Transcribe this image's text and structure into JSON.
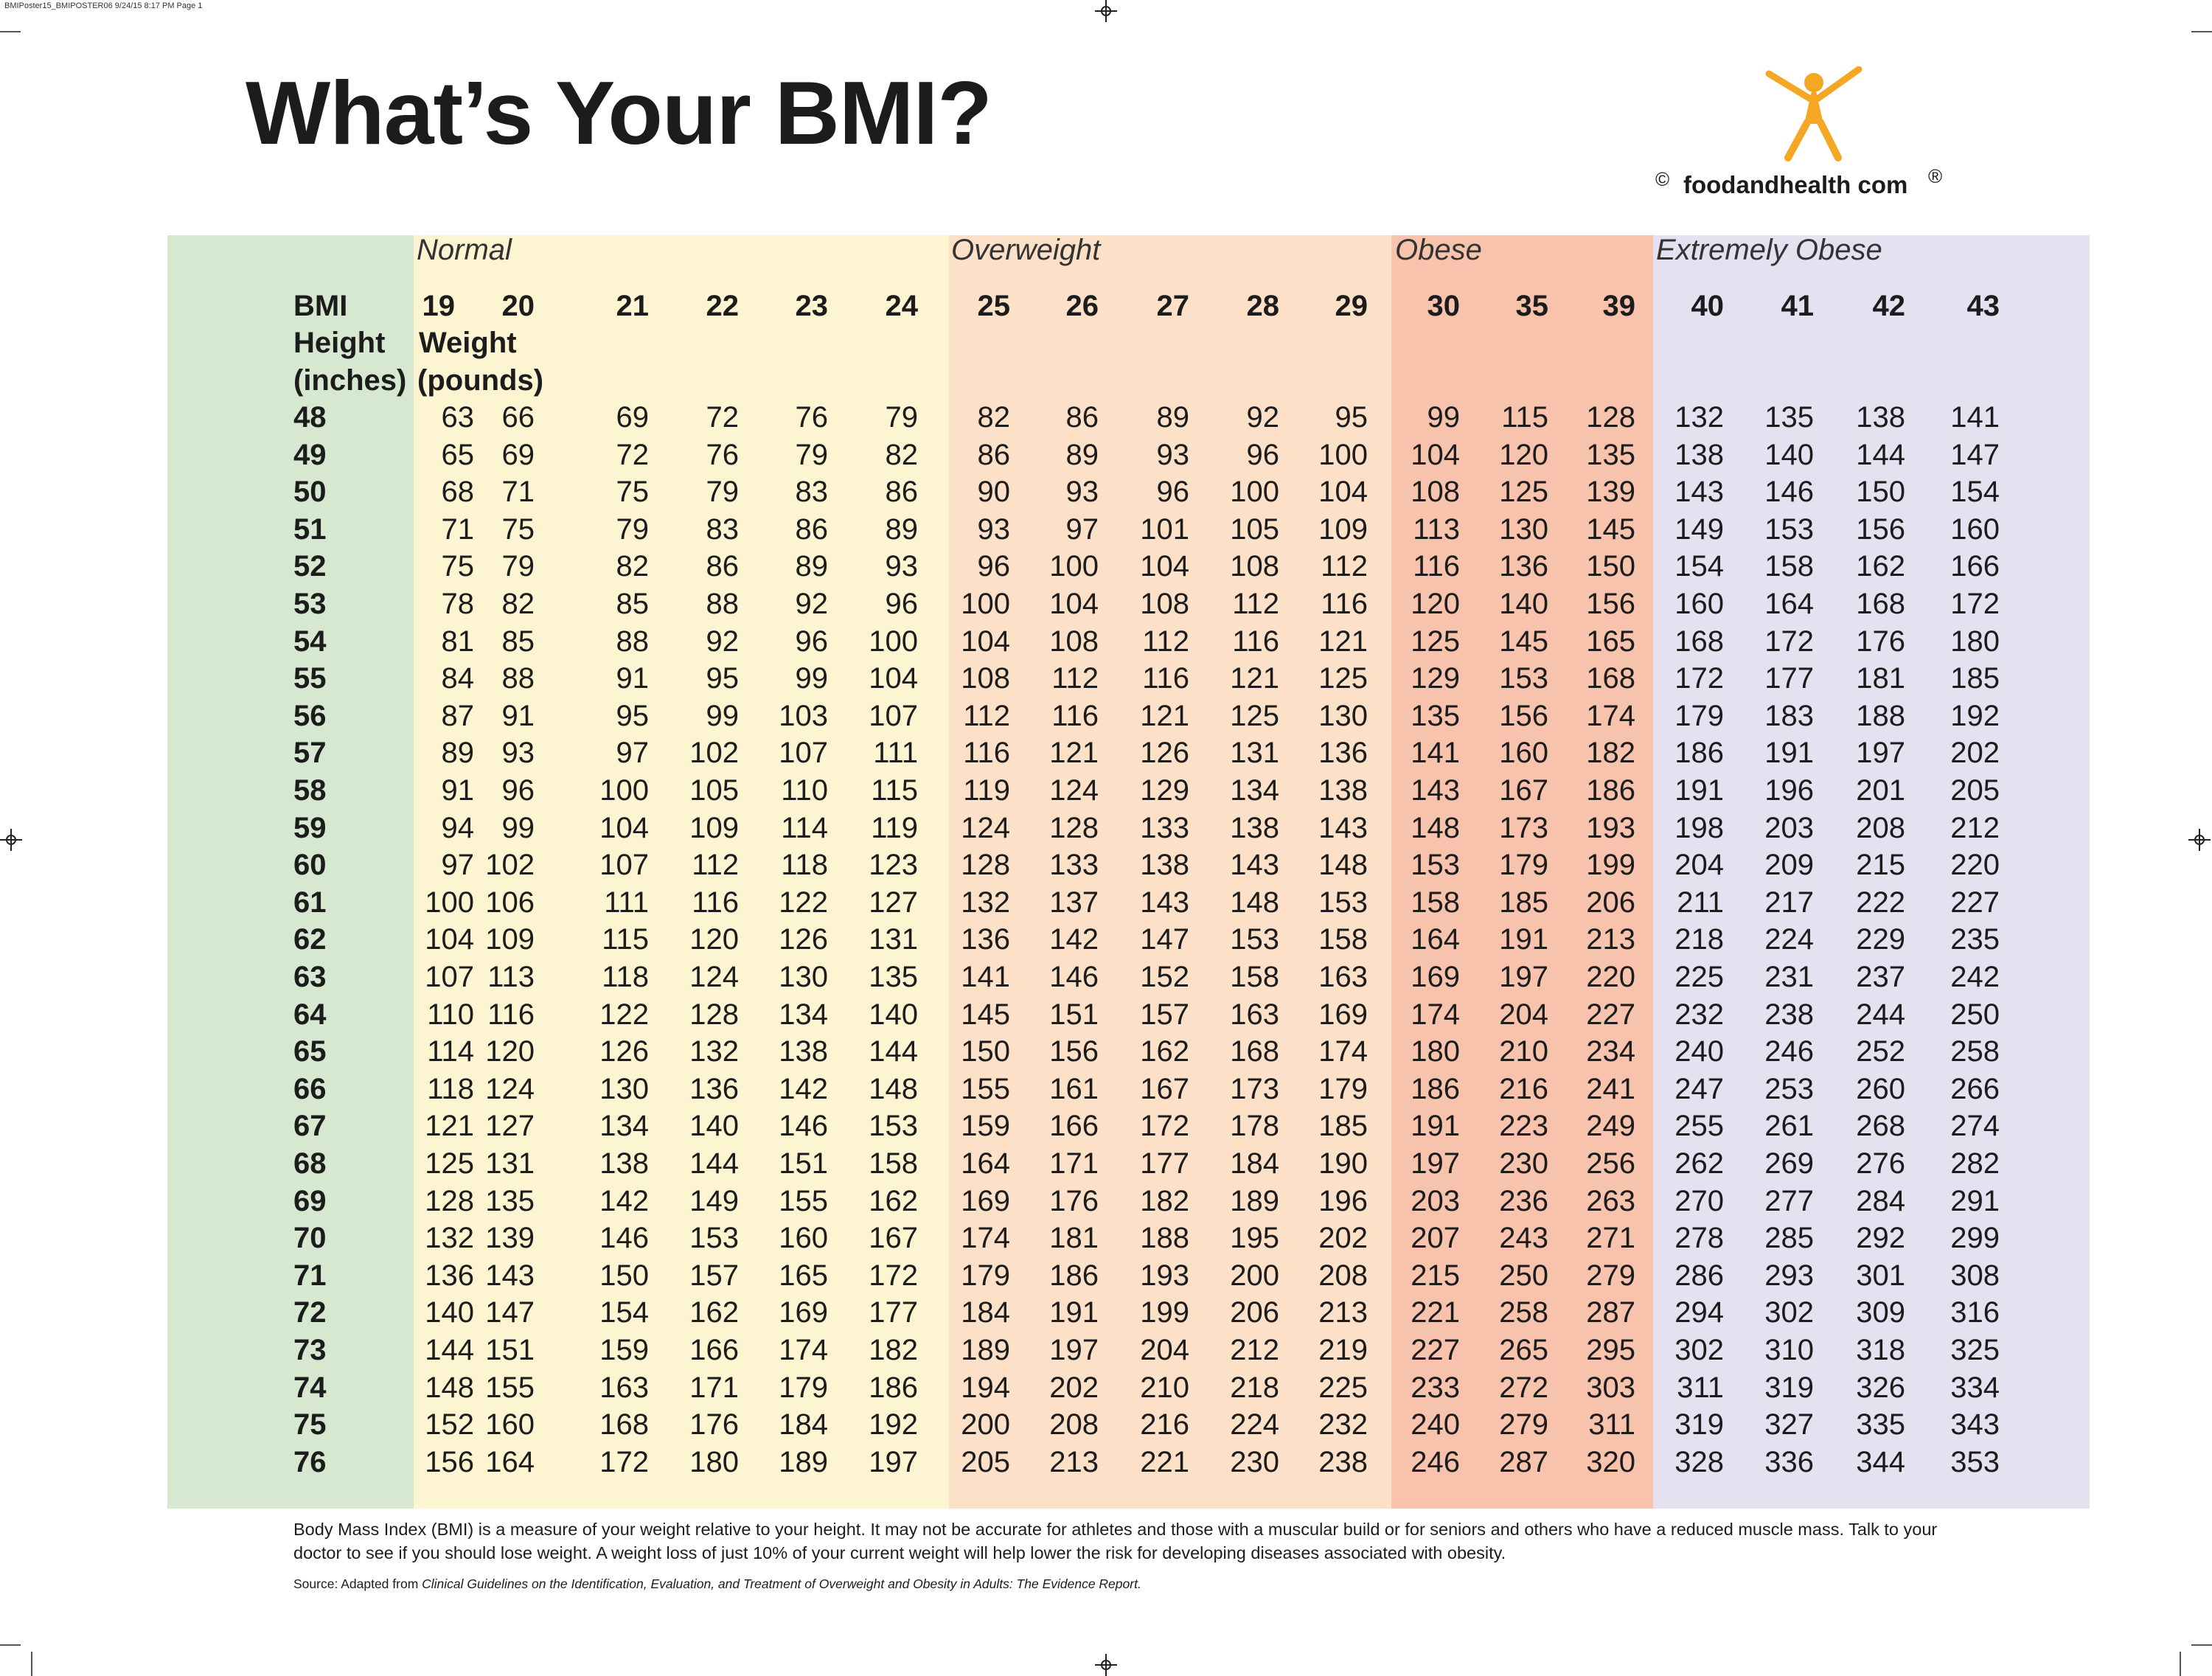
{
  "print_slug": "BMIPoster15_BMIPOSTER06  9/24/15  8:17 PM  Page 1",
  "title": "What’s Your BMI?",
  "logo": {
    "icon": "stick-figure-icon",
    "copyright": "©",
    "text": "foodandhealth com",
    "registered": "®"
  },
  "colors": {
    "normal_band": "#fdf4d1",
    "overweight_band": "#fde0c8",
    "obese_band": "#f7c3ad",
    "extremely_obese_band": "#e4e1f0",
    "height_band": "#d6e8cf",
    "logo": "#f5a623"
  },
  "categories": {
    "normal": "Normal",
    "overweight": "Overweight",
    "obese": "Obese",
    "extremely_obese": "Extremely Obese"
  },
  "table_labels": {
    "bmi": "BMI",
    "height": "Height",
    "height_unit": "(inches)",
    "weight": "Weight",
    "weight_unit": "(pounds)"
  },
  "bmi_values": [
    "19",
    "20",
    "21",
    "22",
    "23",
    "24",
    "25",
    "26",
    "27",
    "28",
    "29",
    "30",
    "35",
    "39",
    "40",
    "41",
    "42",
    "43"
  ],
  "rows": [
    {
      "height": "48",
      "weights": [
        "63",
        "66",
        "69",
        "72",
        "76",
        "79",
        "82",
        "86",
        "89",
        "92",
        "95",
        "99",
        "115",
        "128",
        "132",
        "135",
        "138",
        "141"
      ]
    },
    {
      "height": "49",
      "weights": [
        "65",
        "69",
        "72",
        "76",
        "79",
        "82",
        "86",
        "89",
        "93",
        "96",
        "100",
        "104",
        "120",
        "135",
        "138",
        "140",
        "144",
        "147"
      ]
    },
    {
      "height": "50",
      "weights": [
        "68",
        "71",
        "75",
        "79",
        "83",
        "86",
        "90",
        "93",
        "96",
        "100",
        "104",
        "108",
        "125",
        "139",
        "143",
        "146",
        "150",
        "154"
      ]
    },
    {
      "height": "51",
      "weights": [
        "71",
        "75",
        "79",
        "83",
        "86",
        "89",
        "93",
        "97",
        "101",
        "105",
        "109",
        "113",
        "130",
        "145",
        "149",
        "153",
        "156",
        "160"
      ]
    },
    {
      "height": "52",
      "weights": [
        "75",
        "79",
        "82",
        "86",
        "89",
        "93",
        "96",
        "100",
        "104",
        "108",
        "112",
        "116",
        "136",
        "150",
        "154",
        "158",
        "162",
        "166"
      ]
    },
    {
      "height": "53",
      "weights": [
        "78",
        "82",
        "85",
        "88",
        "92",
        "96",
        "100",
        "104",
        "108",
        "112",
        "116",
        "120",
        "140",
        "156",
        "160",
        "164",
        "168",
        "172"
      ]
    },
    {
      "height": "54",
      "weights": [
        "81",
        "85",
        "88",
        "92",
        "96",
        "100",
        "104",
        "108",
        "112",
        "116",
        "121",
        "125",
        "145",
        "165",
        "168",
        "172",
        "176",
        "180"
      ]
    },
    {
      "height": "55",
      "weights": [
        "84",
        "88",
        "91",
        "95",
        "99",
        "104",
        "108",
        "112",
        "116",
        "121",
        "125",
        "129",
        "153",
        "168",
        "172",
        "177",
        "181",
        "185"
      ]
    },
    {
      "height": "56",
      "weights": [
        "87",
        "91",
        "95",
        "99",
        "103",
        "107",
        "112",
        "116",
        "121",
        "125",
        "130",
        "135",
        "156",
        "174",
        "179",
        "183",
        "188",
        "192"
      ]
    },
    {
      "height": "57",
      "weights": [
        "89",
        "93",
        "97",
        "102",
        "107",
        "111",
        "116",
        "121",
        "126",
        "131",
        "136",
        "141",
        "160",
        "182",
        "186",
        "191",
        "197",
        "202"
      ]
    },
    {
      "height": "58",
      "weights": [
        "91",
        "96",
        "100",
        "105",
        "110",
        "115",
        "119",
        "124",
        "129",
        "134",
        "138",
        "143",
        "167",
        "186",
        "191",
        "196",
        "201",
        "205"
      ]
    },
    {
      "height": "59",
      "weights": [
        "94",
        "99",
        "104",
        "109",
        "114",
        "119",
        "124",
        "128",
        "133",
        "138",
        "143",
        "148",
        "173",
        "193",
        "198",
        "203",
        "208",
        "212"
      ]
    },
    {
      "height": "60",
      "weights": [
        "97",
        "102",
        "107",
        "112",
        "118",
        "123",
        "128",
        "133",
        "138",
        "143",
        "148",
        "153",
        "179",
        "199",
        "204",
        "209",
        "215",
        "220"
      ]
    },
    {
      "height": "61",
      "weights": [
        "100",
        "106",
        "111",
        "116",
        "122",
        "127",
        "132",
        "137",
        "143",
        "148",
        "153",
        "158",
        "185",
        "206",
        "211",
        "217",
        "222",
        "227"
      ]
    },
    {
      "height": "62",
      "weights": [
        "104",
        "109",
        "115",
        "120",
        "126",
        "131",
        "136",
        "142",
        "147",
        "153",
        "158",
        "164",
        "191",
        "213",
        "218",
        "224",
        "229",
        "235"
      ]
    },
    {
      "height": "63",
      "weights": [
        "107",
        "113",
        "118",
        "124",
        "130",
        "135",
        "141",
        "146",
        "152",
        "158",
        "163",
        "169",
        "197",
        "220",
        "225",
        "231",
        "237",
        "242"
      ]
    },
    {
      "height": "64",
      "weights": [
        "110",
        "116",
        "122",
        "128",
        "134",
        "140",
        "145",
        "151",
        "157",
        "163",
        "169",
        "174",
        "204",
        "227",
        "232",
        "238",
        "244",
        "250"
      ]
    },
    {
      "height": "65",
      "weights": [
        "114",
        "120",
        "126",
        "132",
        "138",
        "144",
        "150",
        "156",
        "162",
        "168",
        "174",
        "180",
        "210",
        "234",
        "240",
        "246",
        "252",
        "258"
      ]
    },
    {
      "height": "66",
      "weights": [
        "118",
        "124",
        "130",
        "136",
        "142",
        "148",
        "155",
        "161",
        "167",
        "173",
        "179",
        "186",
        "216",
        "241",
        "247",
        "253",
        "260",
        "266"
      ]
    },
    {
      "height": "67",
      "weights": [
        "121",
        "127",
        "134",
        "140",
        "146",
        "153",
        "159",
        "166",
        "172",
        "178",
        "185",
        "191",
        "223",
        "249",
        "255",
        "261",
        "268",
        "274"
      ]
    },
    {
      "height": "68",
      "weights": [
        "125",
        "131",
        "138",
        "144",
        "151",
        "158",
        "164",
        "171",
        "177",
        "184",
        "190",
        "197",
        "230",
        "256",
        "262",
        "269",
        "276",
        "282"
      ]
    },
    {
      "height": "69",
      "weights": [
        "128",
        "135",
        "142",
        "149",
        "155",
        "162",
        "169",
        "176",
        "182",
        "189",
        "196",
        "203",
        "236",
        "263",
        "270",
        "277",
        "284",
        "291"
      ]
    },
    {
      "height": "70",
      "weights": [
        "132",
        "139",
        "146",
        "153",
        "160",
        "167",
        "174",
        "181",
        "188",
        "195",
        "202",
        "207",
        "243",
        "271",
        "278",
        "285",
        "292",
        "299"
      ]
    },
    {
      "height": "71",
      "weights": [
        "136",
        "143",
        "150",
        "157",
        "165",
        "172",
        "179",
        "186",
        "193",
        "200",
        "208",
        "215",
        "250",
        "279",
        "286",
        "293",
        "301",
        "308"
      ]
    },
    {
      "height": "72",
      "weights": [
        "140",
        "147",
        "154",
        "162",
        "169",
        "177",
        "184",
        "191",
        "199",
        "206",
        "213",
        "221",
        "258",
        "287",
        "294",
        "302",
        "309",
        "316"
      ]
    },
    {
      "height": "73",
      "weights": [
        "144",
        "151",
        "159",
        "166",
        "174",
        "182",
        "189",
        "197",
        "204",
        "212",
        "219",
        "227",
        "265",
        "295",
        "302",
        "310",
        "318",
        "325"
      ]
    },
    {
      "height": "74",
      "weights": [
        "148",
        "155",
        "163",
        "171",
        "179",
        "186",
        "194",
        "202",
        "210",
        "218",
        "225",
        "233",
        "272",
        "303",
        "311",
        "319",
        "326",
        "334"
      ]
    },
    {
      "height": "75",
      "weights": [
        "152",
        "160",
        "168",
        "176",
        "184",
        "192",
        "200",
        "208",
        "216",
        "224",
        "232",
        "240",
        "279",
        "311",
        "319",
        "327",
        "335",
        "343"
      ]
    },
    {
      "height": "76",
      "weights": [
        "156",
        "164",
        "172",
        "180",
        "189",
        "197",
        "205",
        "213",
        "221",
        "230",
        "238",
        "246",
        "287",
        "320",
        "328",
        "336",
        "344",
        "353"
      ]
    }
  ],
  "description": "Body Mass Index (BMI) is a measure of your weight relative to your height. It may not be accurate for athletes and those with a muscular build or for seniors and others who have a reduced muscle mass. Talk to your doctor to see if you should lose weight. A weight loss of just 10% of your current weight will help lower the risk for developing diseases associated with obesity.",
  "source": {
    "prefix": "Source: Adapted from ",
    "title": "Clinical Guidelines on the Identification, Evaluation, and Treatment of Overweight and Obesity in Adults: The Evidence Report."
  }
}
